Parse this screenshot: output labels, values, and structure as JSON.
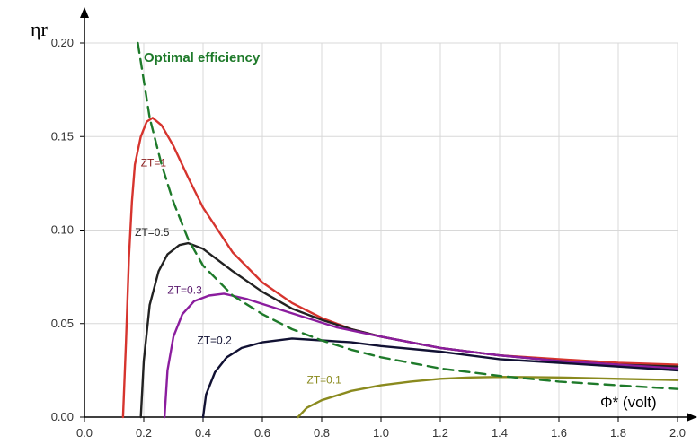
{
  "chart_data": {
    "type": "line",
    "ylabel": "ηr",
    "xlabel": "Φ* (volt)",
    "xlim": [
      0.0,
      2.0
    ],
    "ylim": [
      0.0,
      0.2
    ],
    "x_ticks": [
      "0.0",
      "0.2",
      "0.4",
      "0.6",
      "0.8",
      "1.0",
      "1.2",
      "1.4",
      "1.6",
      "1.8",
      "2.0"
    ],
    "y_ticks": [
      "0.00",
      "0.05",
      "0.10",
      "0.15",
      "0.20"
    ],
    "grid": true,
    "series": [
      {
        "name": "ZT=1",
        "color": "#d6342e",
        "style": "solid",
        "points": [
          [
            0.13,
            0.0
          ],
          [
            0.14,
            0.04
          ],
          [
            0.15,
            0.085
          ],
          [
            0.16,
            0.115
          ],
          [
            0.17,
            0.135
          ],
          [
            0.19,
            0.15
          ],
          [
            0.21,
            0.158
          ],
          [
            0.23,
            0.16
          ],
          [
            0.26,
            0.156
          ],
          [
            0.3,
            0.145
          ],
          [
            0.35,
            0.128
          ],
          [
            0.4,
            0.112
          ],
          [
            0.5,
            0.088
          ],
          [
            0.6,
            0.072
          ],
          [
            0.7,
            0.061
          ],
          [
            0.8,
            0.053
          ],
          [
            0.9,
            0.047
          ],
          [
            1.0,
            0.043
          ],
          [
            1.2,
            0.037
          ],
          [
            1.4,
            0.033
          ],
          [
            1.6,
            0.031
          ],
          [
            1.8,
            0.029
          ],
          [
            2.0,
            0.028
          ]
        ]
      },
      {
        "name": "ZT=0.5",
        "color": "#222222",
        "style": "solid",
        "points": [
          [
            0.19,
            0.0
          ],
          [
            0.2,
            0.03
          ],
          [
            0.22,
            0.06
          ],
          [
            0.25,
            0.078
          ],
          [
            0.28,
            0.087
          ],
          [
            0.32,
            0.092
          ],
          [
            0.35,
            0.093
          ],
          [
            0.4,
            0.09
          ],
          [
            0.5,
            0.078
          ],
          [
            0.6,
            0.067
          ],
          [
            0.7,
            0.058
          ],
          [
            0.8,
            0.052
          ],
          [
            0.9,
            0.047
          ],
          [
            1.0,
            0.043
          ],
          [
            1.2,
            0.037
          ],
          [
            1.4,
            0.033
          ],
          [
            1.6,
            0.03
          ],
          [
            1.8,
            0.028
          ],
          [
            2.0,
            0.027
          ]
        ]
      },
      {
        "name": "ZT=0.3",
        "color": "#8b1d9e",
        "style": "solid",
        "points": [
          [
            0.27,
            0.0
          ],
          [
            0.28,
            0.025
          ],
          [
            0.3,
            0.043
          ],
          [
            0.33,
            0.055
          ],
          [
            0.37,
            0.062
          ],
          [
            0.42,
            0.065
          ],
          [
            0.47,
            0.066
          ],
          [
            0.55,
            0.063
          ],
          [
            0.65,
            0.058
          ],
          [
            0.75,
            0.053
          ],
          [
            0.85,
            0.048
          ],
          [
            1.0,
            0.043
          ],
          [
            1.2,
            0.037
          ],
          [
            1.4,
            0.033
          ],
          [
            1.6,
            0.03
          ],
          [
            1.8,
            0.028
          ],
          [
            2.0,
            0.026
          ]
        ]
      },
      {
        "name": "ZT=0.2",
        "color": "#111133",
        "style": "solid",
        "points": [
          [
            0.4,
            0.0
          ],
          [
            0.41,
            0.012
          ],
          [
            0.44,
            0.024
          ],
          [
            0.48,
            0.032
          ],
          [
            0.53,
            0.037
          ],
          [
            0.6,
            0.04
          ],
          [
            0.7,
            0.042
          ],
          [
            0.8,
            0.041
          ],
          [
            0.9,
            0.04
          ],
          [
            1.0,
            0.038
          ],
          [
            1.2,
            0.035
          ],
          [
            1.4,
            0.031
          ],
          [
            1.6,
            0.029
          ],
          [
            1.8,
            0.027
          ],
          [
            2.0,
            0.025
          ]
        ]
      },
      {
        "name": "ZT=0.1",
        "color": "#8a8a1e",
        "style": "solid",
        "points": [
          [
            0.72,
            0.0
          ],
          [
            0.75,
            0.005
          ],
          [
            0.8,
            0.009
          ],
          [
            0.9,
            0.014
          ],
          [
            1.0,
            0.017
          ],
          [
            1.1,
            0.019
          ],
          [
            1.2,
            0.0205
          ],
          [
            1.3,
            0.0212
          ],
          [
            1.4,
            0.0215
          ],
          [
            1.5,
            0.0214
          ],
          [
            1.6,
            0.0212
          ],
          [
            1.8,
            0.0205
          ],
          [
            2.0,
            0.0198
          ]
        ]
      },
      {
        "name": "Optimal efficiency",
        "color": "#1e7a2a",
        "style": "dashed",
        "points": [
          [
            0.18,
            0.2
          ],
          [
            0.2,
            0.18
          ],
          [
            0.22,
            0.16
          ],
          [
            0.26,
            0.135
          ],
          [
            0.3,
            0.115
          ],
          [
            0.35,
            0.095
          ],
          [
            0.4,
            0.081
          ],
          [
            0.5,
            0.065
          ],
          [
            0.6,
            0.055
          ],
          [
            0.7,
            0.047
          ],
          [
            0.8,
            0.041
          ],
          [
            0.9,
            0.036
          ],
          [
            1.0,
            0.032
          ],
          [
            1.2,
            0.026
          ],
          [
            1.4,
            0.022
          ],
          [
            1.6,
            0.019
          ],
          [
            1.8,
            0.017
          ],
          [
            2.0,
            0.015
          ]
        ]
      }
    ],
    "annotations": [
      {
        "text": "Optimal efficiency",
        "x": 0.2,
        "y": 0.19,
        "color": "#1e7a2a"
      },
      {
        "text": "ZT=1",
        "x": 0.19,
        "y": 0.134,
        "color": "#8a1a1a"
      },
      {
        "text": "ZT=0.5",
        "x": 0.17,
        "y": 0.097,
        "color": "#222222"
      },
      {
        "text": "ZT=0.3",
        "x": 0.28,
        "y": 0.066,
        "color": "#5a1a6e"
      },
      {
        "text": "ZT=0.2",
        "x": 0.38,
        "y": 0.039,
        "color": "#111133"
      },
      {
        "text": "ZT=0.1",
        "x": 0.75,
        "y": 0.018,
        "color": "#8a8a1e"
      }
    ]
  }
}
